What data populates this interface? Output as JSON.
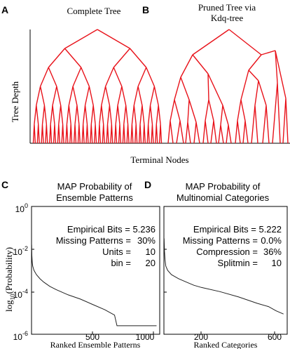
{
  "figure": {
    "shared_xlabel_top": "Terminal Nodes",
    "shared_ylabel_top": "Tree Depth",
    "shared_ylabel_bottom": "log",
    "shared_ylabel_bottom_sub": "10",
    "shared_ylabel_bottom_rest": "(Probability)"
  },
  "panels": {
    "A": {
      "letter": "A",
      "title": "Complete Tree"
    },
    "B": {
      "letter": "B",
      "title_line1": "Pruned Tree via",
      "title_line2": "Kdq-tree"
    },
    "C": {
      "letter": "C",
      "title_line1": "MAP Probability of",
      "title_line2": "Ensemble Patterns",
      "xlabel": "Ranked Ensemble Patterns",
      "ytick_1": "10",
      "ytick_1_exp": "0",
      "ytick_2": "10",
      "ytick_2_exp": "-2",
      "ytick_3": "10",
      "ytick_3_exp": "-4",
      "ytick_4": "10",
      "ytick_4_exp": "-6",
      "xtick_1": "500",
      "xtick_2": "1000",
      "stats": [
        {
          "label": "Empirical Bits = 5.236",
          "value": ""
        },
        {
          "label": "Missing Patterns =",
          "value": "30%"
        },
        {
          "label": "Units =",
          "value": "10"
        },
        {
          "label": "bin =",
          "value": "20"
        }
      ]
    },
    "D": {
      "letter": "D",
      "title_line1": "MAP Probability of",
      "title_line2": "Multinomial Categories",
      "xlabel": "Ranked Categories",
      "xtick_1": "200",
      "xtick_2": "600",
      "stats": [
        {
          "label": "Empirical Bits = 5.222",
          "value": ""
        },
        {
          "label": "Missing Patterns =",
          "value": "0.0%"
        },
        {
          "label": "Compression =",
          "value": "36%"
        },
        {
          "label": "Splitmin =",
          "value": "10"
        }
      ]
    }
  },
  "colors": {
    "tree": "#e8121a",
    "axis": "#000000",
    "curve": "#222222"
  },
  "chart_data": [
    {
      "type": "line",
      "panel": "C",
      "xlim": [
        0,
        1050
      ],
      "ylim_log10": [
        -6,
        0
      ],
      "x": [
        1,
        3,
        6,
        10,
        20,
        40,
        70,
        100,
        150,
        200,
        300,
        400,
        500,
        600,
        680,
        700,
        800,
        900,
        1024
      ],
      "log10_y": [
        -1.8,
        -2.3,
        -2.6,
        -2.8,
        -3.0,
        -3.2,
        -3.4,
        -3.55,
        -3.75,
        -3.9,
        -4.15,
        -4.35,
        -4.6,
        -4.85,
        -5.1,
        -5.6,
        -5.6,
        -5.6,
        -5.6
      ]
    },
    {
      "type": "line",
      "panel": "D",
      "xlim": [
        0,
        660
      ],
      "ylim_log10": [
        -6,
        0
      ],
      "x": [
        1,
        3,
        6,
        10,
        20,
        40,
        80,
        120,
        160,
        200,
        300,
        400,
        500,
        560,
        600,
        640
      ],
      "log10_y": [
        -1.5,
        -2.1,
        -2.5,
        -2.8,
        -3.0,
        -3.2,
        -3.4,
        -3.55,
        -3.7,
        -3.8,
        -4.0,
        -4.25,
        -4.55,
        -4.7,
        -4.9,
        -5.05
      ]
    }
  ]
}
